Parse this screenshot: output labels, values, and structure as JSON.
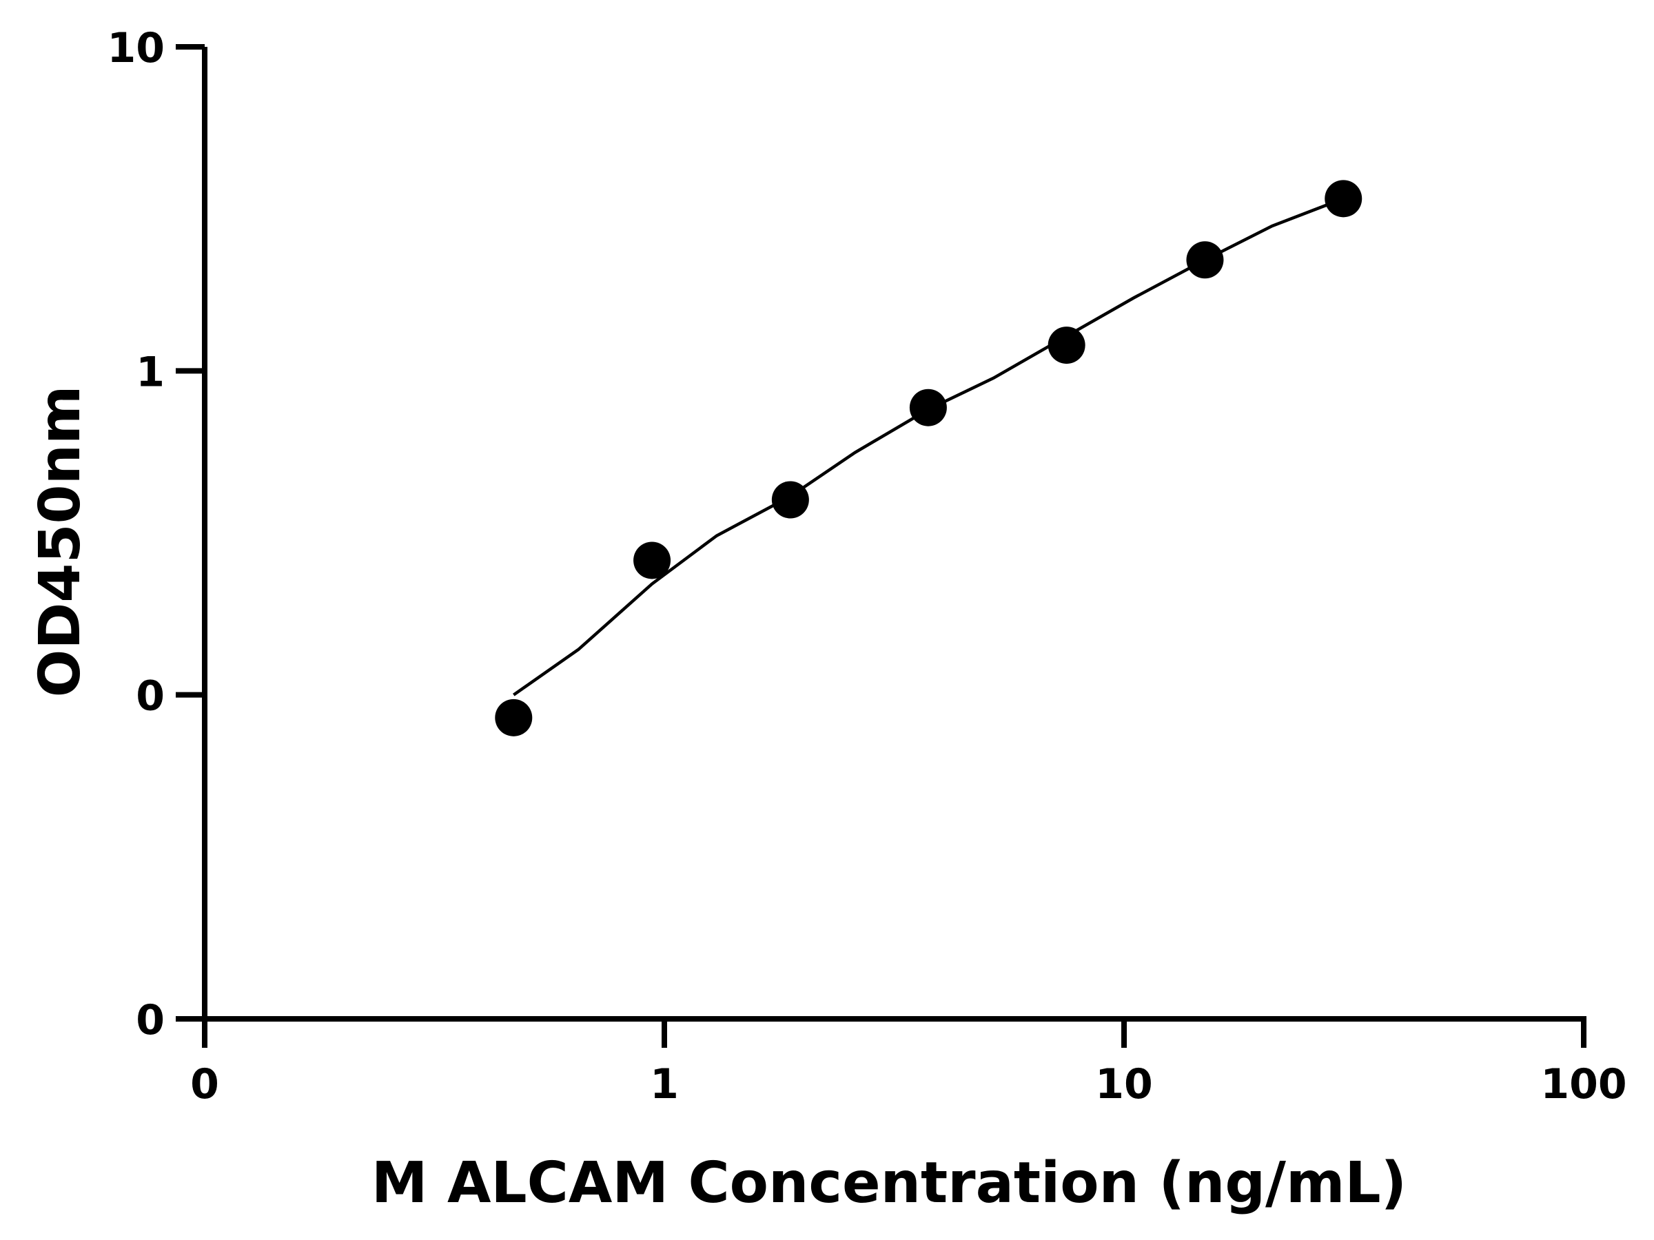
{
  "chart_data": {
    "type": "scatter",
    "title": "",
    "xlabel": "M ALCAM Concentration (ng/mL)",
    "ylabel": "OD450nm",
    "x_scale": "log",
    "y_scale": "log",
    "xlim": [
      0.1,
      100
    ],
    "ylim": [
      0.01,
      10
    ],
    "x_ticks": [
      {
        "value": 0.1,
        "label": "0"
      },
      {
        "value": 1,
        "label": "1"
      },
      {
        "value": 10,
        "label": "10"
      },
      {
        "value": 100,
        "label": "100"
      }
    ],
    "y_ticks": [
      {
        "value": 0.01,
        "label": "0"
      },
      {
        "value": 0.1,
        "label": "0"
      },
      {
        "value": 1,
        "label": "1"
      },
      {
        "value": 10,
        "label": "10"
      }
    ],
    "grid": false,
    "legend": "none",
    "series": [
      {
        "x": [
          0.47,
          0.94,
          1.88,
          3.75,
          7.5,
          15,
          30
        ],
        "y": [
          0.085,
          0.26,
          0.4,
          0.77,
          1.2,
          2.2,
          3.4
        ]
      }
    ],
    "fit_curve": {
      "x": [
        0.47,
        0.65,
        0.94,
        1.3,
        1.88,
        2.6,
        3.75,
        5.2,
        7.5,
        10.5,
        15,
        21,
        30
      ],
      "y": [
        0.1,
        0.138,
        0.22,
        0.31,
        0.41,
        0.56,
        0.76,
        0.95,
        1.28,
        1.68,
        2.2,
        2.8,
        3.4
      ]
    },
    "colors": {
      "axis": "#000000",
      "points": "#000000",
      "curve": "#000000"
    }
  }
}
